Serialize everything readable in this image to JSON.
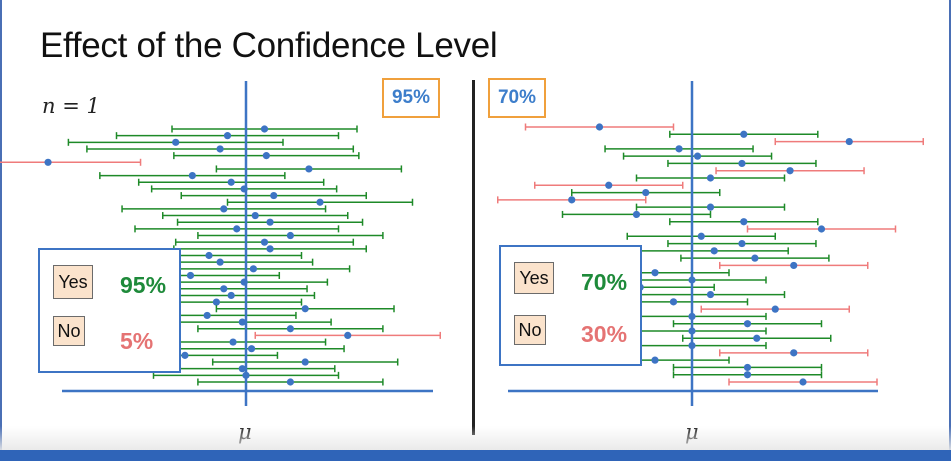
{
  "title": "Effect of the Confidence Level",
  "n_label": "n = 1",
  "mu_symbol": "μ",
  "colors": {
    "hit": "#1e8a28",
    "miss": "#ef7b7b",
    "center": "#3d74c4",
    "yes_pct": "#1e8a3a",
    "no_pct": "#e57373",
    "box_border": "#f0a03c"
  },
  "panels": [
    {
      "confidence_label": "95%",
      "legend": {
        "yes_label": "Yes",
        "yes_pct": "95%",
        "no_label": "No",
        "no_pct": "5%"
      },
      "intervals": [
        {
          "center": 0.1,
          "half_width": 0.5
        },
        {
          "center": -0.1,
          "half_width": 0.6
        },
        {
          "center": -0.38,
          "half_width": 0.58
        },
        {
          "center": -0.14,
          "half_width": 0.72
        },
        {
          "center": 0.11,
          "half_width": 0.5
        },
        {
          "center": -1.07,
          "half_width": 0.5
        },
        {
          "center": 0.34,
          "half_width": 0.5
        },
        {
          "center": -0.29,
          "half_width": 0.5
        },
        {
          "center": -0.08,
          "half_width": 0.5
        },
        {
          "center": -0.01,
          "half_width": 0.5
        },
        {
          "center": 0.15,
          "half_width": 0.5
        },
        {
          "center": 0.4,
          "half_width": 0.5
        },
        {
          "center": -0.12,
          "half_width": 0.55
        },
        {
          "center": 0.05,
          "half_width": 0.5
        },
        {
          "center": 0.13,
          "half_width": 0.5
        },
        {
          "center": -0.05,
          "half_width": 0.55
        },
        {
          "center": 0.24,
          "half_width": 0.5
        },
        {
          "center": 0.1,
          "half_width": 0.48
        },
        {
          "center": 0.13,
          "half_width": 0.52
        },
        {
          "center": -0.2,
          "half_width": 0.5
        },
        {
          "center": -0.14,
          "half_width": 0.5
        },
        {
          "center": 0.04,
          "half_width": 0.52
        },
        {
          "center": -0.3,
          "half_width": 0.48
        },
        {
          "center": -0.01,
          "half_width": 0.45
        },
        {
          "center": -0.12,
          "half_width": 0.45
        },
        {
          "center": -0.08,
          "half_width": 0.45
        },
        {
          "center": -0.16,
          "half_width": 0.46
        },
        {
          "center": 0.32,
          "half_width": 0.48
        },
        {
          "center": -0.21,
          "half_width": 0.48
        },
        {
          "center": -0.02,
          "half_width": 0.48
        },
        {
          "center": 0.24,
          "half_width": 0.5
        },
        {
          "center": 0.55,
          "half_width": 0.5
        },
        {
          "center": -0.07,
          "half_width": 0.5
        },
        {
          "center": 0.03,
          "half_width": 0.5
        },
        {
          "center": -0.33,
          "half_width": 0.5
        },
        {
          "center": 0.32,
          "half_width": 0.5
        },
        {
          "center": -0.02,
          "half_width": 0.5
        },
        {
          "center": 0.0,
          "half_width": 0.5
        },
        {
          "center": 0.24,
          "half_width": 0.5
        }
      ]
    },
    {
      "confidence_label": "70%",
      "legend": {
        "yes_label": "Yes",
        "yes_pct": "70%",
        "no_label": "No",
        "no_pct": "30%"
      },
      "intervals": [
        {
          "center": -0.5,
          "half_width": 0.4
        },
        {
          "center": 0.28,
          "half_width": 0.4
        },
        {
          "center": 0.85,
          "half_width": 0.4
        },
        {
          "center": -0.07,
          "half_width": 0.4
        },
        {
          "center": 0.03,
          "half_width": 0.4
        },
        {
          "center": 0.27,
          "half_width": 0.4
        },
        {
          "center": 0.53,
          "half_width": 0.4
        },
        {
          "center": 0.1,
          "half_width": 0.4
        },
        {
          "center": -0.45,
          "half_width": 0.4
        },
        {
          "center": -0.25,
          "half_width": 0.4
        },
        {
          "center": -0.65,
          "half_width": 0.4
        },
        {
          "center": 0.1,
          "half_width": 0.4
        },
        {
          "center": -0.3,
          "half_width": 0.4
        },
        {
          "center": 0.28,
          "half_width": 0.4
        },
        {
          "center": 0.7,
          "half_width": 0.4
        },
        {
          "center": 0.05,
          "half_width": 0.4
        },
        {
          "center": 0.27,
          "half_width": 0.4
        },
        {
          "center": 0.12,
          "half_width": 0.4
        },
        {
          "center": 0.34,
          "half_width": 0.4
        },
        {
          "center": 0.55,
          "half_width": 0.4
        },
        {
          "center": -0.2,
          "half_width": 0.4
        },
        {
          "center": 0.0,
          "half_width": 0.4
        },
        {
          "center": -0.28,
          "half_width": 0.4
        },
        {
          "center": 0.1,
          "half_width": 0.4
        },
        {
          "center": -0.1,
          "half_width": 0.4
        },
        {
          "center": 0.45,
          "half_width": 0.4
        },
        {
          "center": 0.0,
          "half_width": 0.4
        },
        {
          "center": 0.3,
          "half_width": 0.4
        },
        {
          "center": 0.0,
          "half_width": 0.4
        },
        {
          "center": 0.35,
          "half_width": 0.4
        },
        {
          "center": 0.0,
          "half_width": 0.4
        },
        {
          "center": 0.55,
          "half_width": 0.4
        },
        {
          "center": -0.2,
          "half_width": 0.4
        },
        {
          "center": 0.3,
          "half_width": 0.4
        },
        {
          "center": 0.3,
          "half_width": 0.4
        },
        {
          "center": 0.6,
          "half_width": 0.4
        }
      ]
    }
  ]
}
